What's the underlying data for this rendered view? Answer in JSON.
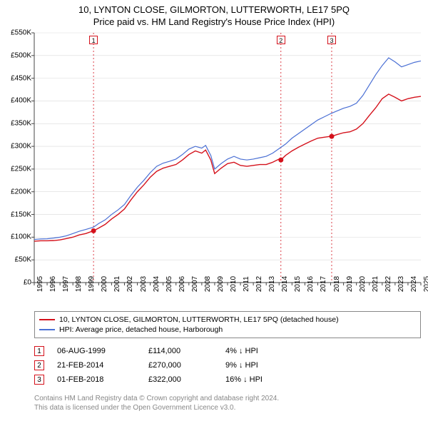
{
  "title": "10, LYNTON CLOSE, GILMORTON, LUTTERWORTH, LE17 5PQ",
  "subtitle": "Price paid vs. HM Land Registry's House Price Index (HPI)",
  "chart": {
    "type": "line",
    "background_color": "#ffffff",
    "axis_color": "#444444",
    "axis_font_size": 10,
    "x": {
      "min": 1995,
      "max": 2025,
      "ticks": [
        1995,
        1996,
        1997,
        1998,
        1999,
        2000,
        2001,
        2002,
        2003,
        2004,
        2005,
        2006,
        2007,
        2008,
        2009,
        2010,
        2011,
        2012,
        2013,
        2014,
        2015,
        2016,
        2017,
        2018,
        2019,
        2020,
        2021,
        2022,
        2023,
        2024,
        2025
      ]
    },
    "y": {
      "min": 0,
      "max": 550000,
      "step": 50000,
      "ticks": [
        0,
        50000,
        100000,
        150000,
        200000,
        250000,
        300000,
        350000,
        400000,
        450000,
        500000,
        550000
      ],
      "labels": [
        "£0",
        "£50K",
        "£100K",
        "£150K",
        "£200K",
        "£250K",
        "£300K",
        "£350K",
        "£400K",
        "£450K",
        "£500K",
        "£550K"
      ]
    },
    "series": [
      {
        "key": "property",
        "color": "#d4111b",
        "width": 1.4,
        "label": "10, LYNTON CLOSE, GILMORTON, LUTTERWORTH, LE17 5PQ (detached house)",
        "points": [
          [
            1995,
            91000
          ],
          [
            1995.5,
            92000
          ],
          [
            1996,
            92000
          ],
          [
            1996.5,
            92500
          ],
          [
            1997,
            94000
          ],
          [
            1997.5,
            97000
          ],
          [
            1998,
            100000
          ],
          [
            1998.5,
            105000
          ],
          [
            1999,
            108000
          ],
          [
            1999.6,
            114000
          ],
          [
            2000,
            120000
          ],
          [
            2000.5,
            128000
          ],
          [
            2001,
            140000
          ],
          [
            2001.5,
            150000
          ],
          [
            2002,
            162000
          ],
          [
            2002.5,
            182000
          ],
          [
            2003,
            200000
          ],
          [
            2003.5,
            215000
          ],
          [
            2004,
            232000
          ],
          [
            2004.5,
            245000
          ],
          [
            2005,
            252000
          ],
          [
            2005.5,
            256000
          ],
          [
            2006,
            260000
          ],
          [
            2006.5,
            270000
          ],
          [
            2007,
            282000
          ],
          [
            2007.5,
            290000
          ],
          [
            2008,
            285000
          ],
          [
            2008.3,
            292000
          ],
          [
            2008.7,
            270000
          ],
          [
            2009,
            240000
          ],
          [
            2009.5,
            252000
          ],
          [
            2010,
            262000
          ],
          [
            2010.5,
            265000
          ],
          [
            2011,
            258000
          ],
          [
            2011.5,
            256000
          ],
          [
            2012,
            258000
          ],
          [
            2012.5,
            260000
          ],
          [
            2013,
            260000
          ],
          [
            2013.5,
            265000
          ],
          [
            2014,
            272000
          ],
          [
            2014.14,
            270000
          ],
          [
            2014.5,
            280000
          ],
          [
            2015,
            290000
          ],
          [
            2015.5,
            298000
          ],
          [
            2016,
            305000
          ],
          [
            2016.5,
            312000
          ],
          [
            2017,
            318000
          ],
          [
            2017.5,
            320000
          ],
          [
            2018,
            322000
          ],
          [
            2018.08,
            322000
          ],
          [
            2018.5,
            326000
          ],
          [
            2019,
            330000
          ],
          [
            2019.5,
            332000
          ],
          [
            2020,
            338000
          ],
          [
            2020.5,
            350000
          ],
          [
            2021,
            368000
          ],
          [
            2021.5,
            385000
          ],
          [
            2022,
            405000
          ],
          [
            2022.5,
            415000
          ],
          [
            2023,
            408000
          ],
          [
            2023.5,
            400000
          ],
          [
            2024,
            405000
          ],
          [
            2024.5,
            408000
          ],
          [
            2025,
            410000
          ]
        ]
      },
      {
        "key": "hpi",
        "color": "#4a6fd4",
        "width": 1.2,
        "label": "HPI: Average price, detached house, Harborough",
        "points": [
          [
            1995,
            95000
          ],
          [
            1995.5,
            96000
          ],
          [
            1996,
            96500
          ],
          [
            1996.5,
            98000
          ],
          [
            1997,
            100000
          ],
          [
            1997.5,
            103000
          ],
          [
            1998,
            108000
          ],
          [
            1998.5,
            113000
          ],
          [
            1999,
            117000
          ],
          [
            1999.6,
            122000
          ],
          [
            2000,
            130000
          ],
          [
            2000.5,
            138000
          ],
          [
            2001,
            150000
          ],
          [
            2001.5,
            160000
          ],
          [
            2002,
            172000
          ],
          [
            2002.5,
            192000
          ],
          [
            2003,
            210000
          ],
          [
            2003.5,
            225000
          ],
          [
            2004,
            242000
          ],
          [
            2004.5,
            256000
          ],
          [
            2005,
            263000
          ],
          [
            2005.5,
            267000
          ],
          [
            2006,
            272000
          ],
          [
            2006.5,
            282000
          ],
          [
            2007,
            294000
          ],
          [
            2007.5,
            300000
          ],
          [
            2008,
            296000
          ],
          [
            2008.3,
            302000
          ],
          [
            2008.7,
            280000
          ],
          [
            2009,
            250000
          ],
          [
            2009.5,
            262000
          ],
          [
            2010,
            272000
          ],
          [
            2010.5,
            278000
          ],
          [
            2011,
            272000
          ],
          [
            2011.5,
            270000
          ],
          [
            2012,
            272000
          ],
          [
            2012.5,
            275000
          ],
          [
            2013,
            278000
          ],
          [
            2013.5,
            285000
          ],
          [
            2014,
            295000
          ],
          [
            2014.5,
            305000
          ],
          [
            2015,
            318000
          ],
          [
            2015.5,
            328000
          ],
          [
            2016,
            338000
          ],
          [
            2016.5,
            348000
          ],
          [
            2017,
            358000
          ],
          [
            2017.5,
            365000
          ],
          [
            2018,
            372000
          ],
          [
            2018.5,
            378000
          ],
          [
            2019,
            384000
          ],
          [
            2019.5,
            388000
          ],
          [
            2020,
            395000
          ],
          [
            2020.5,
            412000
          ],
          [
            2021,
            435000
          ],
          [
            2021.5,
            458000
          ],
          [
            2022,
            478000
          ],
          [
            2022.5,
            495000
          ],
          [
            2023,
            486000
          ],
          [
            2023.5,
            475000
          ],
          [
            2024,
            480000
          ],
          [
            2024.5,
            485000
          ],
          [
            2025,
            488000
          ]
        ]
      }
    ],
    "sale_markers": [
      {
        "n": "1",
        "x": 1999.6,
        "y": 114000,
        "line_color": "#d4111b"
      },
      {
        "n": "2",
        "x": 2014.14,
        "y": 270000,
        "line_color": "#d4111b"
      },
      {
        "n": "3",
        "x": 2018.08,
        "y": 322000,
        "line_color": "#d4111b"
      }
    ],
    "marker_dot_color": "#d4111b",
    "marker_box_border": "#d4111b",
    "marker_line_dash": "2,3"
  },
  "legend": {
    "items": [
      {
        "color": "#d4111b",
        "label_key": "chart.series.0.label"
      },
      {
        "color": "#4a6fd4",
        "label_key": "chart.series.1.label"
      }
    ]
  },
  "sales_table": {
    "rows": [
      {
        "n": "1",
        "date": "06-AUG-1999",
        "price": "£114,000",
        "delta": "4% ↓ HPI",
        "border": "#d4111b"
      },
      {
        "n": "2",
        "date": "21-FEB-2014",
        "price": "£270,000",
        "delta": "9% ↓ HPI",
        "border": "#d4111b"
      },
      {
        "n": "3",
        "date": "01-FEB-2018",
        "price": "£322,000",
        "delta": "16% ↓ HPI",
        "border": "#d4111b"
      }
    ]
  },
  "footer": {
    "line1": "Contains HM Land Registry data © Crown copyright and database right 2024.",
    "line2": "This data is licensed under the Open Government Licence v3.0."
  }
}
